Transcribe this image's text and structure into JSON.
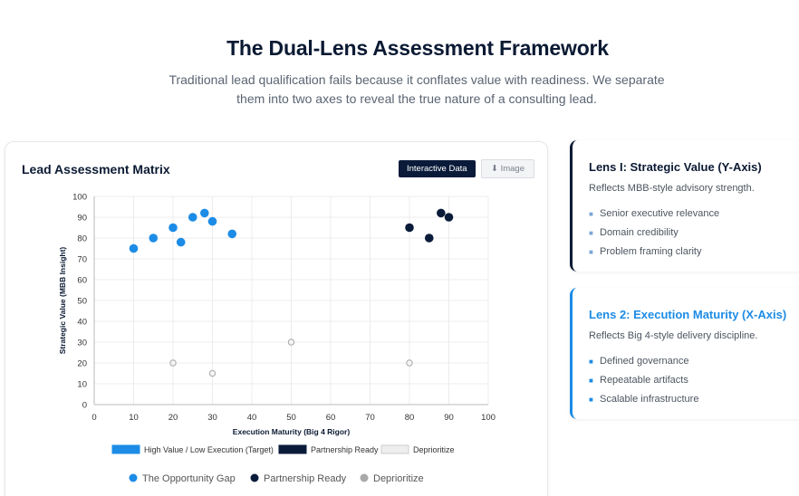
{
  "header": {
    "title": "The Dual-Lens Assessment Framework",
    "subtitle": "Traditional lead qualification fails because it conflates value with readiness. We separate them into two axes to reveal the true nature of a consulting lead."
  },
  "chart_card": {
    "title": "Lead Assessment Matrix",
    "interactive_label": "Interactive Data",
    "image_label": "⬇ Image"
  },
  "chart_data": {
    "type": "scatter",
    "title": "Lead Assessment Matrix",
    "xlabel": "Execution Maturity (Big 4 Rigor)",
    "ylabel": "Strategic Value (MBB Insight)",
    "xlim": [
      0,
      100
    ],
    "ylim": [
      0,
      100
    ],
    "x_ticks": [
      0,
      10,
      20,
      30,
      40,
      50,
      60,
      70,
      80,
      90,
      100
    ],
    "y_ticks": [
      0,
      10,
      20,
      30,
      40,
      50,
      60,
      70,
      80,
      90,
      100
    ],
    "grid": true,
    "legend_top": [
      {
        "label": "High Value / Low Execution (Target)",
        "color": "#1c8ce6"
      },
      {
        "label": "Partnership Ready",
        "color": "#0a1b3a"
      },
      {
        "label": "Deprioritize",
        "color": "#eeeeee"
      }
    ],
    "series": [
      {
        "name": "The Opportunity Gap",
        "color": "#1c8ce6",
        "points": [
          [
            10,
            75
          ],
          [
            15,
            80
          ],
          [
            20,
            85
          ],
          [
            22,
            78
          ],
          [
            25,
            90
          ],
          [
            28,
            92
          ],
          [
            30,
            88
          ],
          [
            35,
            82
          ]
        ]
      },
      {
        "name": "Partnership Ready",
        "color": "#0a1b3a",
        "points": [
          [
            80,
            85
          ],
          [
            85,
            80
          ],
          [
            88,
            92
          ],
          [
            90,
            90
          ]
        ]
      },
      {
        "name": "Deprioritize",
        "color": "#a9a9a9",
        "points": [
          [
            20,
            20
          ],
          [
            30,
            15
          ],
          [
            50,
            30
          ],
          [
            80,
            20
          ]
        ]
      }
    ]
  },
  "lens1": {
    "title": "Lens I: Strategic Value (Y-Axis)",
    "description": "Reflects MBB-style advisory strength.",
    "items": [
      "Senior executive relevance",
      "Domain credibility",
      "Problem framing clarity"
    ]
  },
  "lens2": {
    "title": "Lens 2: Execution Maturity (X-Axis)",
    "description": "Reflects Big 4-style delivery discipline.",
    "items": [
      "Defined governance",
      "Repeatable artifacts",
      "Scalable infrastructure"
    ]
  }
}
